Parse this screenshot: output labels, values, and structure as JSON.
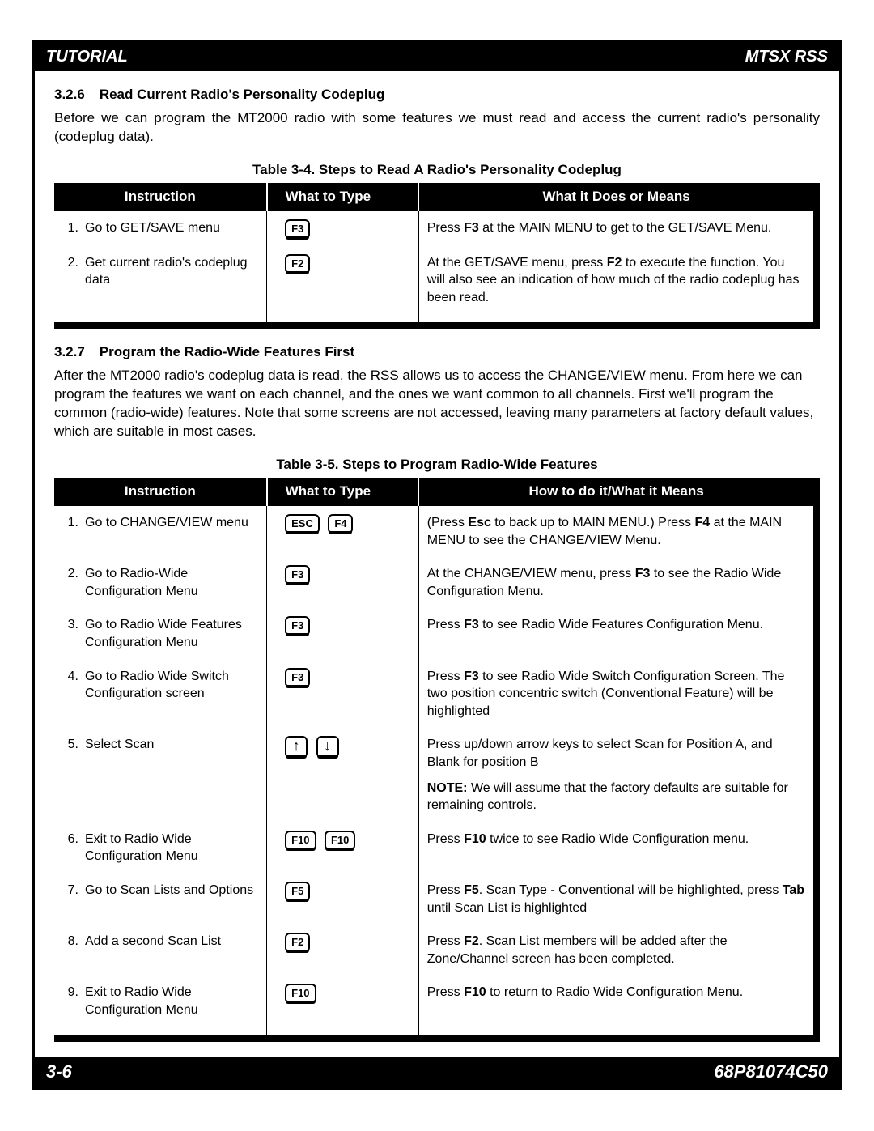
{
  "header": {
    "left": "TUTORIAL",
    "right": "MTSX RSS"
  },
  "footer": {
    "left": "3-6",
    "right": "68P81074C50"
  },
  "section326": {
    "num": "3.2.6",
    "title": "Read Current Radio's Personality Codeplug",
    "body": "Before we can program the MT2000 radio with some features we must read and access the current radio's personality (codeplug data)."
  },
  "table34": {
    "caption": "Table 3-4.  Steps to Read A Radio's Personality Codeplug",
    "headers": [
      "Instruction",
      "What to Type",
      "What it Does or Means"
    ],
    "rows": [
      {
        "num": "1.",
        "instruction": "Go to GET/SAVE menu",
        "keys": [
          "F3"
        ],
        "means": [
          {
            "pre": "Press ",
            "bold": "F3",
            "post": " at the MAIN MENU to get to the GET/SAVE Menu."
          }
        ]
      },
      {
        "num": "2.",
        "instruction": "Get current radio's codeplug data",
        "keys": [
          "F2"
        ],
        "means": [
          {
            "pre": "At the GET/SAVE menu, press ",
            "bold": "F2",
            "post": " to execute the function.  You will also see an indication of how much of the radio codeplug has been read."
          }
        ]
      }
    ]
  },
  "section327": {
    "num": "3.2.7",
    "title": "Program the Radio-Wide Features First",
    "body": "After the MT2000 radio's codeplug data is read, the RSS allows us to access the CHANGE/VIEW menu.  From here we can program the features we want on each channel, and the ones we want common to all channels.  First we'll program the common (radio-wide) features.  Note that some screens are not accessed, leaving many parameters at factory default values, which are suitable in most cases."
  },
  "table35": {
    "caption": "Table 3-5.  Steps to Program Radio-Wide Features",
    "headers": [
      "Instruction",
      "What to Type",
      "How to do it/What it Means"
    ],
    "rows": [
      {
        "num": "1.",
        "instruction": "Go to CHANGE/VIEW menu",
        "keys": [
          "ESC",
          "F4"
        ],
        "means": [
          {
            "pre": "(Press ",
            "bold": "Esc",
            "post": " to back up to MAIN MENU.)  Press ",
            "bold2": "F4",
            "post2": " at the MAIN MENU to see the CHANGE/VIEW Menu."
          }
        ]
      },
      {
        "num": "2.",
        "instruction": "Go to Radio-Wide Configuration Menu",
        "keys": [
          "F3"
        ],
        "means": [
          {
            "pre": "At the CHANGE/VIEW menu, press ",
            "bold": "F3",
            "post": " to see the Radio Wide Configuration Menu."
          }
        ]
      },
      {
        "num": "3.",
        "instruction": "Go to Radio Wide Features Configuration Menu",
        "keys": [
          "F3"
        ],
        "means": [
          {
            "pre": "Press ",
            "bold": "F3",
            "post": " to see Radio Wide Features Configuration Menu."
          }
        ]
      },
      {
        "num": "4.",
        "instruction": "Go to Radio Wide Switch Configuration screen",
        "keys": [
          "F3"
        ],
        "means": [
          {
            "pre": "Press ",
            "bold": "F3",
            "post": " to see Radio Wide Switch Configuration Screen.  The two position concentric switch (Conventional Feature) will be highlighted"
          }
        ]
      },
      {
        "num": "5.",
        "instruction": "Select Scan",
        "keys": [
          "↑",
          "↓"
        ],
        "keytype": "arrow",
        "means": [
          {
            "pre": "Press up/down arrow keys to select Scan for Position A, and Blank for position B"
          },
          {
            "note": "NOTE:",
            "post": "  We will assume that the factory defaults are suitable for remaining controls."
          }
        ]
      },
      {
        "num": "6.",
        "instruction": "Exit to Radio Wide Configuration Menu",
        "keys": [
          "F10",
          "F10"
        ],
        "means": [
          {
            "pre": "Press ",
            "bold": "F10",
            "post": " twice to see Radio Wide Configuration menu."
          }
        ]
      },
      {
        "num": "7.",
        "instruction": "Go to Scan Lists and Options",
        "keys": [
          "F5"
        ],
        "means": [
          {
            "pre": "Press ",
            "bold": "F5",
            "post": ". Scan Type - Conventional will be highlighted, press ",
            "bold2": "Tab",
            "post2": " until Scan List is highlighted"
          }
        ]
      },
      {
        "num": "8.",
        "instruction": "Add a second Scan List",
        "keys": [
          "F2"
        ],
        "means": [
          {
            "pre": "Press ",
            "bold": "F2",
            "post": ".  Scan List members will be added after the Zone/Channel screen has been completed."
          }
        ]
      },
      {
        "num": "9.",
        "instruction": "Exit to Radio Wide Configuration Menu",
        "keys": [
          "F10"
        ],
        "means": [
          {
            "pre": "Press ",
            "bold": "F10",
            "post": " to return to Radio Wide Configuration Menu."
          }
        ]
      }
    ]
  }
}
